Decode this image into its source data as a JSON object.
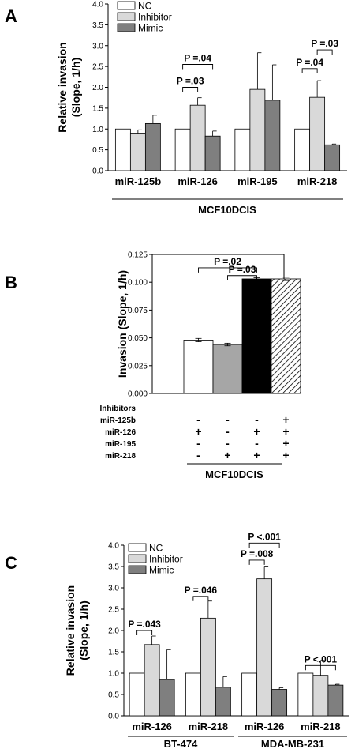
{
  "colors": {
    "nc": "#ffffff",
    "inhibitor": "#d9d9d9",
    "mimic": "#7f7f7f",
    "b_bar1": "#ffffff",
    "b_bar2": "#a6a6a6",
    "b_bar3": "#000000",
    "b_bar4": "#ffffff"
  },
  "chart_data": [
    {
      "panel": "A",
      "type": "bar",
      "ylabel_line1": "Relative invasion",
      "ylabel_line2": "(Slope, 1/h)",
      "ylim": [
        0,
        4.0
      ],
      "yticks": [
        "0.0",
        "0.5",
        "1.0",
        "1.5",
        "2.0",
        "2.5",
        "3.0",
        "3.5",
        "4.0"
      ],
      "categories": [
        "miR-125b",
        "miR-126",
        "miR-195",
        "miR-218"
      ],
      "group_label": "MCF10DCIS",
      "legend": [
        "NC",
        "Inhibitor",
        "Mimic"
      ],
      "series": [
        {
          "name": "NC",
          "values": [
            1.0,
            1.0,
            1.0,
            1.0
          ],
          "errors": [
            0,
            0,
            0,
            0
          ]
        },
        {
          "name": "Inhibitor",
          "values": [
            0.9,
            1.57,
            1.95,
            1.76
          ],
          "errors": [
            0.08,
            0.18,
            0.88,
            0.4
          ]
        },
        {
          "name": "Mimic",
          "values": [
            1.13,
            0.83,
            1.69,
            0.62
          ],
          "errors": [
            0.2,
            0.12,
            0.85,
            0.02
          ]
        }
      ],
      "annotations": [
        {
          "text": "P =.03",
          "category": 1,
          "from": 0,
          "to": 1,
          "y": 2.0
        },
        {
          "text": "P =.04",
          "category": 1,
          "from": 0,
          "to": 2,
          "y": 2.55
        },
        {
          "text": "P =.04",
          "category": 3,
          "from": 0,
          "to": 1,
          "y": 2.45
        },
        {
          "text": "P =.03",
          "category": 3,
          "from": 1,
          "to": 2,
          "y": 2.9
        }
      ]
    },
    {
      "panel": "B",
      "type": "bar",
      "ylabel": "Invasion (Slope, 1/h)",
      "ylim": [
        0,
        0.125
      ],
      "yticks": [
        "0.000",
        "0.025",
        "0.050",
        "0.075",
        "0.100",
        "0.125"
      ],
      "values": [
        0.048,
        0.044,
        0.103,
        0.103
      ],
      "errors": [
        0.0015,
        0.0012,
        0.001,
        0.0015
      ],
      "group_label": "MCF10DCIS",
      "matrix_title": "Inhibitors",
      "matrix_rows": [
        {
          "label": "miR-125b",
          "marks": [
            "-",
            "-",
            "-",
            "+"
          ]
        },
        {
          "label": "miR-126",
          "marks": [
            "+",
            "-",
            "+",
            "+"
          ]
        },
        {
          "label": "miR-195",
          "marks": [
            "-",
            "-",
            "-",
            "+"
          ]
        },
        {
          "label": "miR-218",
          "marks": [
            "-",
            "+",
            "+",
            "+"
          ]
        }
      ],
      "annotations": [
        {
          "text": "P =.02",
          "from": 0,
          "to": 2,
          "y": 0.113
        },
        {
          "text": "P =.03",
          "from": 1,
          "to": 2,
          "y": 0.106
        }
      ]
    },
    {
      "panel": "C",
      "type": "bar",
      "ylabel_line1": "Relative invasion",
      "ylabel_line2": "(Slope, 1/h)",
      "ylim": [
        0,
        4.0
      ],
      "yticks": [
        "0.0",
        "0.5",
        "1.0",
        "1.5",
        "2.0",
        "2.5",
        "3.0",
        "3.5",
        "4.0"
      ],
      "categories": [
        "miR-126",
        "miR-218",
        "miR-126",
        "miR-218"
      ],
      "group_labels": [
        "BT-474",
        "MDA-MB-231"
      ],
      "legend": [
        "NC",
        "Inhibitor",
        "Mimic"
      ],
      "series": [
        {
          "name": "NC",
          "values": [
            1.0,
            1.0,
            1.0,
            1.0
          ],
          "errors": [
            0,
            0,
            0,
            0
          ]
        },
        {
          "name": "Inhibitor",
          "values": [
            1.67,
            2.29,
            3.21,
            0.95
          ],
          "errors": [
            0.2,
            0.4,
            0.28,
            0.35
          ]
        },
        {
          "name": "Mimic",
          "values": [
            0.85,
            0.67,
            0.62,
            0.72
          ],
          "errors": [
            0.7,
            0.25,
            0.04,
            0.02
          ]
        }
      ],
      "annotations": [
        {
          "text": "P =.043",
          "category": 0,
          "from": 0,
          "to": 1,
          "y": 2.0
        },
        {
          "text": "P =.046",
          "category": 1,
          "from": 0,
          "to": 1,
          "y": 2.8
        },
        {
          "text": "P =.008",
          "category": 2,
          "from": 0,
          "to": 1,
          "y": 3.65
        },
        {
          "text": "P <.001",
          "category": 2,
          "from": 0,
          "to": 2,
          "y": 4.05
        },
        {
          "text": "P <.001",
          "category": 3,
          "from": 0,
          "to": 2,
          "y": 1.18
        }
      ]
    }
  ]
}
